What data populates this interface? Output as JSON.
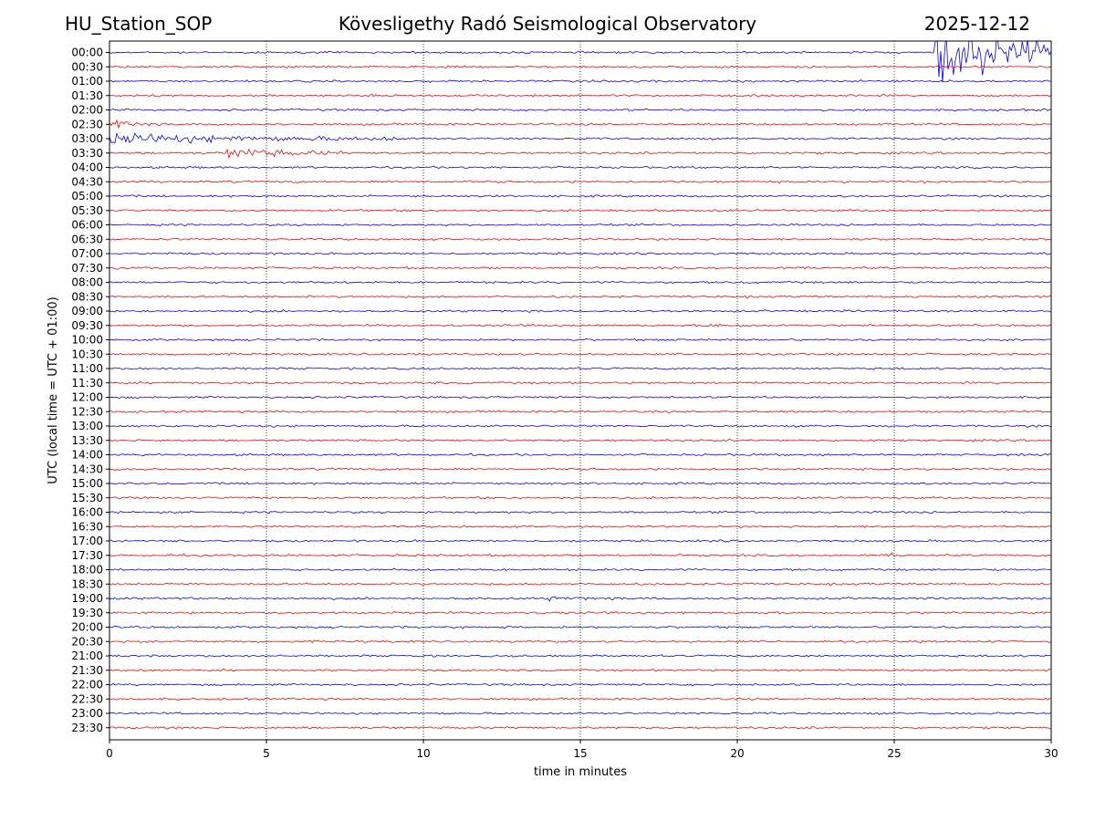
{
  "header": {
    "station": "HU_Station_SOP",
    "observatory": "Kövesligethy Radó Seismological Observatory",
    "date": "2025-12-12"
  },
  "chart_data": {
    "type": "line",
    "subtype": "helicorder",
    "xlabel": "time in minutes",
    "ylabel": "UTC (local time = UTC + 01:00)",
    "xlim": [
      0,
      30
    ],
    "x_ticks": [
      0,
      5,
      10,
      15,
      20,
      25,
      30
    ],
    "vertical_gridlines_dotted": [
      5,
      10,
      15,
      20,
      25
    ],
    "row_labels": [
      "00:00",
      "00:30",
      "01:00",
      "01:30",
      "02:00",
      "02:30",
      "03:00",
      "03:30",
      "04:00",
      "04:30",
      "05:00",
      "05:30",
      "06:00",
      "06:30",
      "07:00",
      "07:30",
      "08:00",
      "08:30",
      "09:00",
      "09:30",
      "10:00",
      "10:30",
      "11:00",
      "11:30",
      "12:00",
      "12:30",
      "13:00",
      "13:30",
      "14:00",
      "14:30",
      "15:00",
      "15:30",
      "16:00",
      "16:30",
      "17:00",
      "17:30",
      "18:00",
      "18:30",
      "19:00",
      "19:30",
      "20:00",
      "20:30",
      "21:00",
      "21:30",
      "22:00",
      "22:30",
      "23:00",
      "23:30"
    ],
    "trace_colors": [
      "#0000ff",
      "#ff0000"
    ],
    "events": [
      {
        "row": "02:30",
        "start_min": 0.0,
        "end_min": 1.5,
        "amplitude": "moderate"
      },
      {
        "row": "03:00",
        "start_min": 0.0,
        "end_min": 9.2,
        "amplitude": "moderate"
      },
      {
        "row": "03:30",
        "start_min": 3.7,
        "end_min": 7.5,
        "amplitude": "moderate"
      },
      {
        "row": "00:00",
        "start_min": 26.3,
        "end_min": 30.0,
        "amplitude": "saturated"
      },
      {
        "row": "17:30",
        "start_min": 24.9,
        "end_min": 26.0,
        "amplitude": "small"
      },
      {
        "row": "19:00",
        "start_min": 14.0,
        "end_min": 18.0,
        "amplitude": "small"
      },
      {
        "row": "09:30",
        "start_min": 19.0,
        "end_min": 24.0,
        "amplitude": "small"
      }
    ]
  }
}
